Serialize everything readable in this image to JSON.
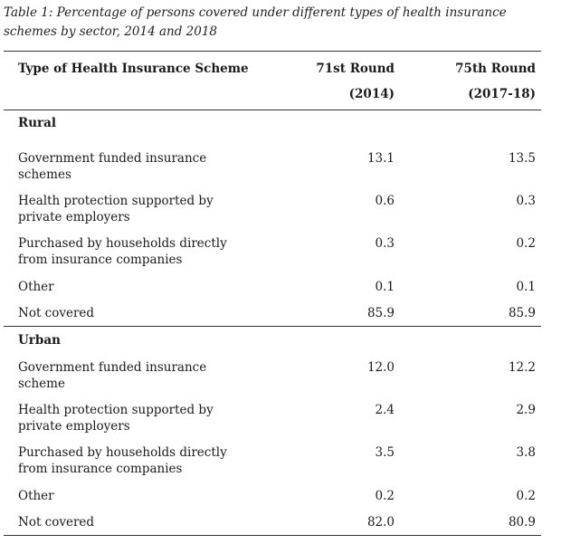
{
  "caption": "Table 1: Percentage of persons covered under different types of health insurance schemes by sector, 2014 and 2018",
  "columns": {
    "scheme": "Type of Health Insurance Scheme",
    "round71_line1": "71st Round",
    "round71_line2": "(2014)",
    "round75_line1": "75th Round",
    "round75_line2": "(2017-18)"
  },
  "sections": [
    {
      "name": "Rural",
      "rows": [
        {
          "label_line1": "Government funded insurance",
          "label_line2": "schemes",
          "v2014": "13.1",
          "v2018": "13.5"
        },
        {
          "label_line1": "Health protection supported by",
          "label_line2": "private employers",
          "v2014": "0.6",
          "v2018": "0.3"
        },
        {
          "label_line1": "Purchased by households directly",
          "label_line2": "from insurance companies",
          "v2014": "0.3",
          "v2018": "0.2"
        },
        {
          "label_line1": "Other",
          "label_line2": "",
          "v2014": "0.1",
          "v2018": "0.1"
        },
        {
          "label_line1": "Not covered",
          "label_line2": "",
          "v2014": "85.9",
          "v2018": "85.9"
        }
      ]
    },
    {
      "name": "Urban",
      "rows": [
        {
          "label_line1": "Government funded insurance",
          "label_line2": "scheme",
          "v2014": "12.0",
          "v2018": "12.2"
        },
        {
          "label_line1": "Health protection supported by",
          "label_line2": "private employers",
          "v2014": "2.4",
          "v2018": "2.9"
        },
        {
          "label_line1": "Purchased by households directly",
          "label_line2": "from insurance companies",
          "v2014": "3.5",
          "v2018": "3.8"
        },
        {
          "label_line1": "Other",
          "label_line2": "",
          "v2014": "0.2",
          "v2018": "0.2"
        },
        {
          "label_line1": "Not covered",
          "label_line2": "",
          "v2014": "82.0",
          "v2018": "80.9"
        }
      ]
    }
  ]
}
